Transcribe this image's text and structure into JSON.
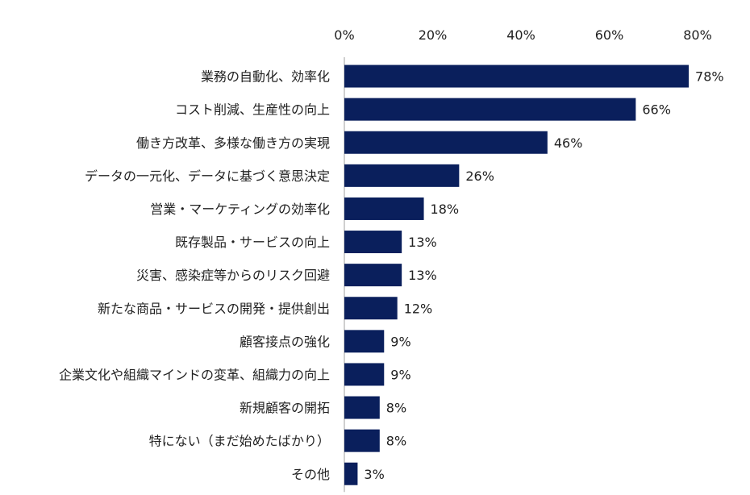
{
  "chart_data": {
    "type": "bar",
    "orientation": "horizontal",
    "categories": [
      "業務の自動化、効率化",
      "コスト削減、生産性の向上",
      "働き方改革、多様な働き方の実現",
      "データの一元化、データに基づく意思決定",
      "営業・マーケティングの効率化",
      "既存製品・サービスの向上",
      "災害、感染症等からのリスク回避",
      "新たな商品・サービスの開発・提供創出",
      "顧客接点の強化",
      "企業文化や組織マインドの変革、組織力の向上",
      "新規顧客の開拓",
      "特にない（まだ始めたばかり）",
      "その他"
    ],
    "values": [
      78,
      66,
      46,
      26,
      18,
      13,
      13,
      12,
      9,
      9,
      8,
      8,
      3
    ],
    "value_labels": [
      "78%",
      "66%",
      "46%",
      "26%",
      "18%",
      "13%",
      "13%",
      "12%",
      "9%",
      "9%",
      "8%",
      "8%",
      "3%"
    ],
    "x_ticks": [
      "0%",
      "20%",
      "40%",
      "60%",
      "80%"
    ],
    "xlim": [
      0,
      80
    ],
    "x_axis_position": "top",
    "grid": false,
    "legend": "none",
    "bar_color": "#0a1f5c",
    "axis_color": "#bfbfbf"
  }
}
